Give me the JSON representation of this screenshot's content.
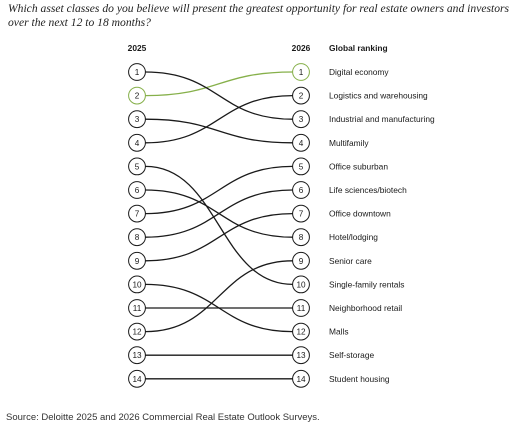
{
  "question": "Which asset classes do you believe will present the greatest opportunity for real estate owners and investors over the next 12 to 18 months?",
  "source": "Source: Deloitte 2025 and 2026 Commercial Real Estate Outlook Surveys.",
  "chart_data": {
    "type": "slope",
    "left_header": "2025",
    "right_header": "2026",
    "ranking_header": "Global ranking",
    "highlight_color": "#86b04a",
    "line_color": "#1a1a1a",
    "items": [
      {
        "label": "Digital economy",
        "rank_2025": 2,
        "rank_2026": 1,
        "highlight": true
      },
      {
        "label": "Logistics and warehousing",
        "rank_2025": 4,
        "rank_2026": 2
      },
      {
        "label": "Industrial and manufacturing",
        "rank_2025": 1,
        "rank_2026": 3
      },
      {
        "label": "Multifamily",
        "rank_2025": 3,
        "rank_2026": 4
      },
      {
        "label": "Office suburban",
        "rank_2025": 7,
        "rank_2026": 5
      },
      {
        "label": "Life sciences/biotech",
        "rank_2025": 8,
        "rank_2026": 6
      },
      {
        "label": "Office downtown",
        "rank_2025": 9,
        "rank_2026": 7
      },
      {
        "label": "Hotel/lodging",
        "rank_2025": 6,
        "rank_2026": 8
      },
      {
        "label": "Senior care",
        "rank_2025": 12,
        "rank_2026": 9
      },
      {
        "label": "Single-family rentals",
        "rank_2025": 5,
        "rank_2026": 10
      },
      {
        "label": "Neighborhood retail",
        "rank_2025": 11,
        "rank_2026": 11
      },
      {
        "label": "Malls",
        "rank_2025": 10,
        "rank_2026": 12
      },
      {
        "label": "Self-storage",
        "rank_2025": 13,
        "rank_2026": 13
      },
      {
        "label": "Student housing",
        "rank_2025": 14,
        "rank_2026": 14
      }
    ]
  }
}
